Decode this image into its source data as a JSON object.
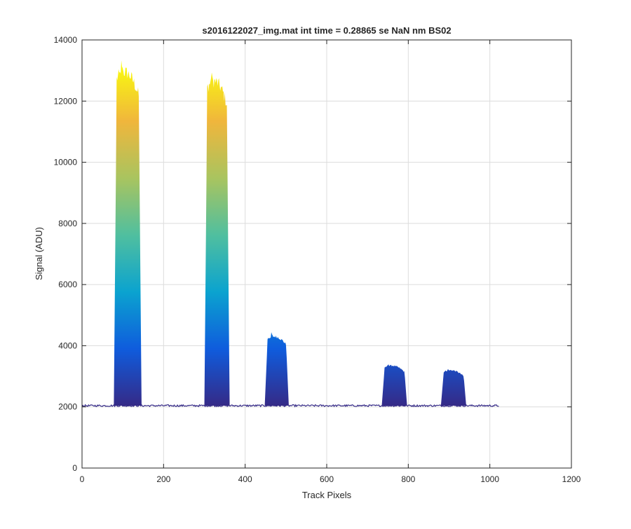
{
  "chart_data": {
    "type": "area",
    "title": "s2016122027_img.mat int time = 0.28865 se  NaN nm BS02",
    "xlabel": "Track Pixels",
    "ylabel": "Signal (ADU)",
    "xlim": [
      0,
      1200
    ],
    "ylim": [
      0,
      14000
    ],
    "xticks": [
      "0",
      "200",
      "400",
      "600",
      "800",
      "1000",
      "1200"
    ],
    "yticks": [
      "0",
      "2000",
      "4000",
      "6000",
      "8000",
      "10000",
      "12000",
      "14000"
    ],
    "grid": true,
    "baseline": 2040,
    "x_extent": [
      0,
      1023
    ],
    "colormap": [
      "#352a87",
      "#0f5cdd",
      "#0ba3cf",
      "#50bf9f",
      "#a9c45f",
      "#f0b63c",
      "#f9fb0e"
    ],
    "color_scale_max": 13200,
    "peaks": [
      {
        "x_start": 78,
        "x_end": 146,
        "top": 12950,
        "spike": 13400,
        "inner_level": 5500
      },
      {
        "x_start": 300,
        "x_end": 362,
        "top": 12650,
        "spike": 13400,
        "inner_level": 7400
      },
      {
        "x_start": 448,
        "x_end": 507,
        "top": 4300,
        "spike": 4500,
        "inner_level": 2600
      },
      {
        "x_start": 735,
        "x_end": 797,
        "top": 3350,
        "spike": 3450,
        "inner_level": 2500
      },
      {
        "x_start": 880,
        "x_end": 942,
        "top": 3200,
        "spike": 3260,
        "inner_level": 2450
      }
    ]
  }
}
